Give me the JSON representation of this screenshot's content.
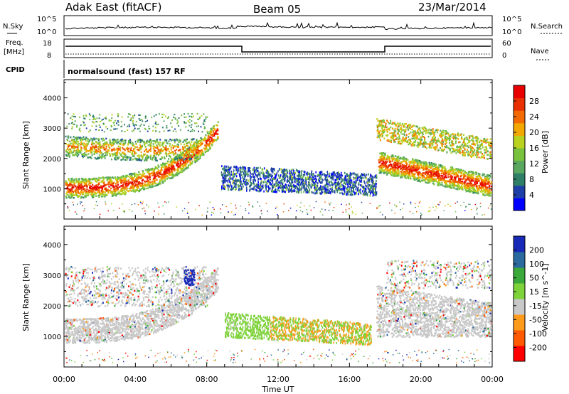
{
  "header": {
    "title": "Adak East (fitACF)",
    "beam": "Beam 05",
    "date": "23/Mar/2014"
  },
  "strips": {
    "nsky": {
      "label": "N.Sky",
      "tick_hi": "10^5",
      "tick_lo": "10^0"
    },
    "freq": {
      "label_1": "Freq.",
      "label_2": "[MHz]",
      "tick_hi": "18",
      "tick_lo": "8"
    },
    "nsearch": {
      "label": "N.Search",
      "tick_hi": "10^5",
      "tick_lo": "10^0"
    },
    "nave": {
      "label": "Nave",
      "tick_hi": "60",
      "tick_lo": "0"
    },
    "cpid": {
      "label": "CPID",
      "value": "normalsound (fast) 157 RF"
    }
  },
  "colors": {
    "power": [
      "#0000ff",
      "#1f3fa8",
      "#2e7f66",
      "#5aa760",
      "#79c23e",
      "#b8d21f",
      "#f2a800",
      "#f26a00",
      "#e83000",
      "#e80000"
    ],
    "velocity": [
      "#ff0000",
      "#ff5a00",
      "#ff9a1a",
      "#c8c8c8",
      "#7ed23a",
      "#3aa83a",
      "#2a6a9e",
      "#1a2ab8"
    ]
  },
  "chart_data": [
    {
      "type": "heatmap",
      "name": "power",
      "title": "",
      "ylabel": "Slant Range [km]",
      "yticks": [
        "1000",
        "2000",
        "3000",
        "4000"
      ],
      "ylim": [
        0,
        4600
      ],
      "x": [
        "00:00",
        "04:00",
        "08:00",
        "12:00",
        "16:00",
        "20:00",
        "00:00"
      ],
      "xlim_hours": [
        0,
        24
      ],
      "colorbar": {
        "label": "Power [dB]",
        "ticks": [
          "4",
          "8",
          "12",
          "16",
          "20",
          "24",
          "28"
        ],
        "range": [
          0,
          32
        ]
      },
      "regions": [
        {
          "t": [
            0,
            8.5
          ],
          "lower_km": [
            1000,
            3000
          ],
          "intensity": "high"
        },
        {
          "t": [
            0,
            8.5
          ],
          "upper_km": [
            2100,
            2900
          ],
          "intensity": "medium"
        },
        {
          "t": [
            8.8,
            17.5
          ],
          "range_km": [
            800,
            1800
          ],
          "intensity": "low"
        },
        {
          "t": [
            17.5,
            24
          ],
          "lower_km": [
            1000,
            2000
          ],
          "intensity": "high"
        },
        {
          "t": [
            17.5,
            24
          ],
          "upper_km": [
            2300,
            3100
          ],
          "intensity": "medium"
        }
      ]
    },
    {
      "type": "heatmap",
      "name": "velocity",
      "title": "",
      "ylabel": "Slant Range [km]",
      "yticks": [
        "1000",
        "2000",
        "3000",
        "4000"
      ],
      "ylim": [
        0,
        4600
      ],
      "x": [
        "00:00",
        "04:00",
        "08:00",
        "12:00",
        "16:00",
        "20:00",
        "00:00"
      ],
      "xlim_hours": [
        0,
        24
      ],
      "xlabel": "Time UT",
      "colorbar": {
        "label": "Velocity [m s^-1]",
        "ticks": [
          "200",
          "100",
          "50",
          "15",
          "-15",
          "-50",
          "-100",
          "-200"
        ],
        "range": [
          -250,
          250
        ]
      },
      "regions": [
        {
          "t": [
            0,
            8.5
          ],
          "range_km": [
            900,
            3000
          ],
          "velocity": "-15 to 15"
        },
        {
          "t": [
            9,
            16
          ],
          "range_km": [
            900,
            1800
          ],
          "velocity": "15 to 50"
        },
        {
          "t": [
            12,
            16
          ],
          "range_km": [
            1000,
            1700
          ],
          "velocity": "-15 to -50"
        },
        {
          "t": [
            17.5,
            24
          ],
          "range_km": [
            1000,
            2600
          ],
          "velocity": "-15 to 15"
        }
      ]
    }
  ]
}
